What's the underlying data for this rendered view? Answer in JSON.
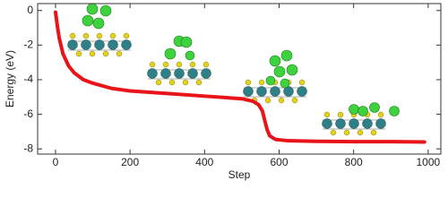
{
  "chart_data": {
    "type": "line",
    "x_label": "Step",
    "y_label": "Energy (eV)",
    "x": [
      0,
      5,
      10,
      20,
      35,
      50,
      75,
      100,
      150,
      200,
      300,
      400,
      500,
      530,
      545,
      555,
      562,
      568,
      575,
      590,
      620,
      700,
      800,
      900,
      990
    ],
    "values": [
      -0.1,
      -0.9,
      -1.6,
      -2.5,
      -3.2,
      -3.6,
      -4.0,
      -4.2,
      -4.5,
      -4.65,
      -4.8,
      -4.95,
      -5.1,
      -5.25,
      -5.45,
      -5.8,
      -6.4,
      -6.9,
      -7.25,
      -7.45,
      -7.52,
      -7.56,
      -7.58,
      -7.58,
      -7.6
    ],
    "color": "#e8141a",
    "xlim": [
      -48,
      1034
    ],
    "ylim": [
      -8.3,
      0.4
    ],
    "xticks": [
      0,
      200,
      400,
      600,
      800,
      1000
    ],
    "yticks": [
      0,
      -2,
      -4,
      -6,
      -8
    ]
  }
}
